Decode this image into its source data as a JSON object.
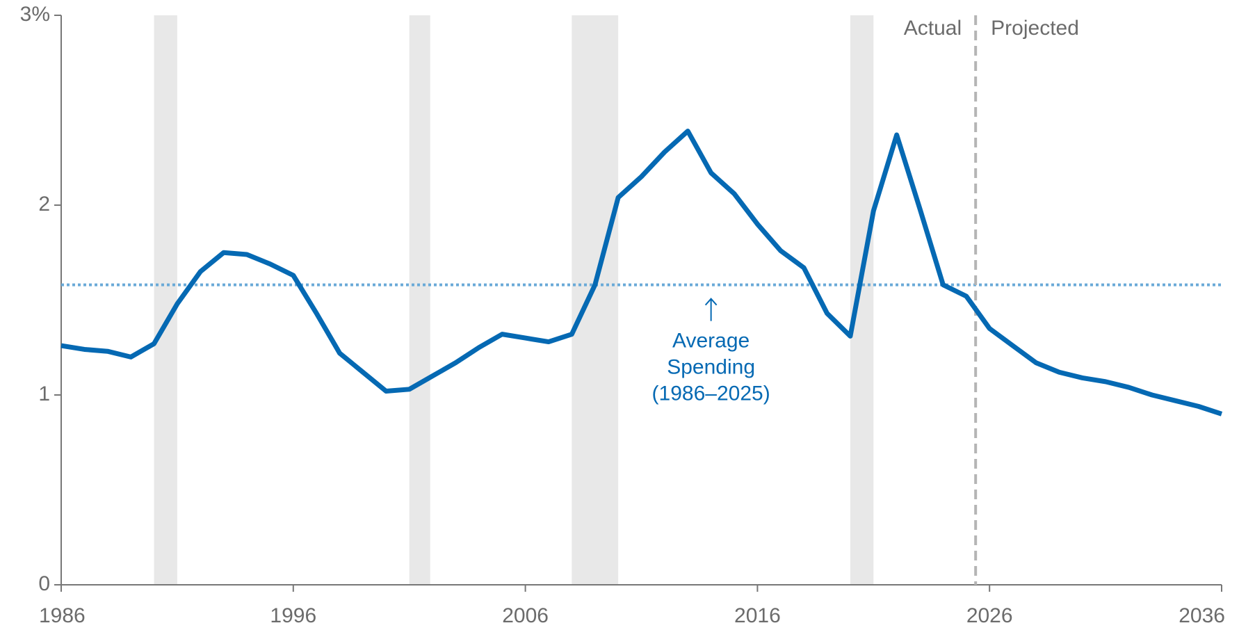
{
  "chart_data": {
    "type": "line",
    "x": [
      1986,
      1987,
      1988,
      1989,
      1990,
      1991,
      1992,
      1993,
      1994,
      1995,
      1996,
      1997,
      1998,
      1999,
      2000,
      2001,
      2002,
      2003,
      2004,
      2005,
      2006,
      2007,
      2008,
      2009,
      2010,
      2011,
      2012,
      2013,
      2014,
      2015,
      2016,
      2017,
      2018,
      2019,
      2020,
      2021,
      2022,
      2023,
      2024,
      2025,
      2026,
      2027,
      2028,
      2029,
      2030,
      2031,
      2032,
      2033,
      2034,
      2035,
      2036
    ],
    "series": [
      {
        "color": "#0569b3",
        "values": [
          1.26,
          1.24,
          1.23,
          1.2,
          1.27,
          1.48,
          1.65,
          1.75,
          1.74,
          1.69,
          1.63,
          1.43,
          1.22,
          1.12,
          1.02,
          1.03,
          1.1,
          1.17,
          1.25,
          1.32,
          1.3,
          1.28,
          1.32,
          1.58,
          2.04,
          2.15,
          2.28,
          2.39,
          2.17,
          2.06,
          1.9,
          1.76,
          1.67,
          1.43,
          1.31,
          1.97,
          2.37,
          1.98,
          1.58,
          1.52,
          1.35,
          1.26,
          1.17,
          1.12,
          1.09,
          1.07,
          1.04,
          1.0,
          0.97,
          0.94,
          0.9
        ]
      }
    ],
    "xlim": [
      1986,
      2036
    ],
    "xticks": [
      1986,
      1996,
      2006,
      2016,
      2026,
      2036
    ],
    "ylim": [
      0,
      3
    ],
    "yticks": [
      0,
      1,
      2,
      {
        "value": 3,
        "label": "3%"
      }
    ],
    "shaded_periods": [
      [
        1990,
        1991
      ],
      [
        2001,
        2001.9
      ],
      [
        2008,
        2010
      ],
      [
        2020,
        2021
      ]
    ],
    "shade_color": "#e8e8e8",
    "average": 1.58,
    "average_color": "#6aaad8",
    "average_label": [
      "Average",
      "Spending",
      "(1986–2025)"
    ],
    "average_label_x": 2014,
    "divider": 2025.4,
    "divider_labels": [
      "Actual",
      "Projected"
    ]
  }
}
